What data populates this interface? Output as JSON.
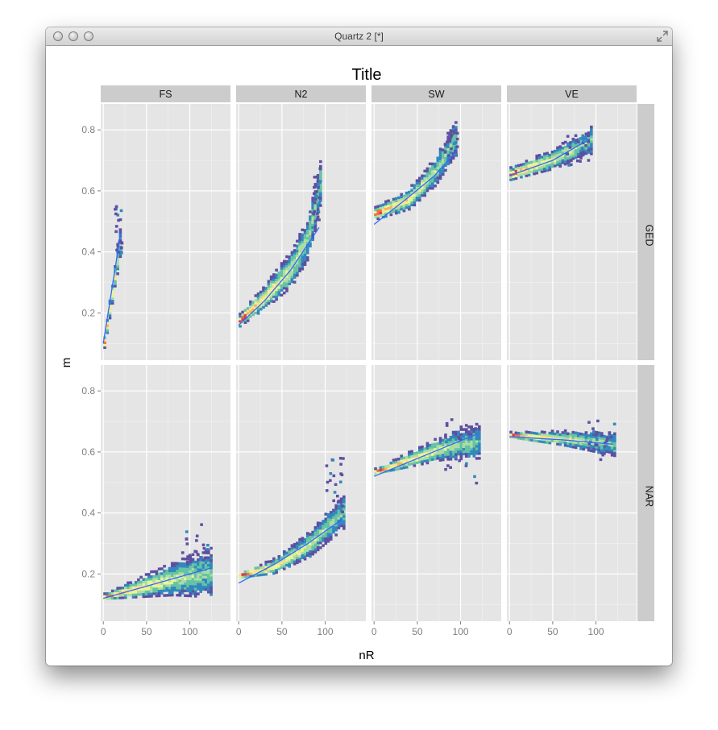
{
  "window": {
    "title": "Quartz 2 [*]",
    "controls": [
      "close-icon",
      "minimize-icon",
      "zoom-icon"
    ],
    "resize_icon": "fullscreen-arrows-icon"
  },
  "chart_data": {
    "type": "heatmap",
    "title": "Title",
    "xlabel": "nR",
    "ylabel": "m",
    "xlim": [
      -3,
      147
    ],
    "ylim": [
      0.045,
      0.885
    ],
    "x_ticks": [
      0,
      50,
      100
    ],
    "y_ticks": [
      0.2,
      0.4,
      0.6,
      0.8
    ],
    "grid": true,
    "facet_cols": [
      "FS",
      "N2",
      "SW",
      "VE"
    ],
    "facet_rows": [
      "GED",
      "NAR"
    ],
    "colors": {
      "panel_bg": "#e5e5e5",
      "strip_bg": "#cccccc",
      "grid": "#ffffff",
      "smooth_line": "#3366ff",
      "palette": [
        "#5e4fa2",
        "#3288bd",
        "#66c2a5",
        "#abdda4",
        "#e6f598",
        "#fee08b",
        "#fdae61",
        "#f46d43",
        "#d53e4f"
      ]
    },
    "panels": [
      {
        "col": "FS",
        "row": "GED",
        "x": [
          0,
          20
        ],
        "trend": [
          [
            0,
            0.1
          ],
          [
            20,
            0.46
          ]
        ],
        "spread": [
          0.02,
          0.05
        ],
        "extreme": [
          12,
          20,
          0.39,
          0.55
        ]
      },
      {
        "col": "N2",
        "row": "GED",
        "x": [
          0,
          93
        ],
        "trend": [
          [
            0,
            0.17
          ],
          [
            30,
            0.25
          ],
          [
            60,
            0.34
          ],
          [
            80,
            0.45
          ],
          [
            93,
            0.62
          ]
        ],
        "spread": [
          0.02,
          0.07
        ],
        "extreme": [
          85,
          93,
          0.5,
          0.67
        ]
      },
      {
        "col": "SW",
        "row": "GED",
        "x": [
          0,
          95
        ],
        "trend": [
          [
            0,
            0.52
          ],
          [
            40,
            0.57
          ],
          [
            70,
            0.66
          ],
          [
            95,
            0.78
          ]
        ],
        "spread": [
          0.02,
          0.05
        ],
        "extreme": [
          80,
          95,
          0.7,
          0.8
        ]
      },
      {
        "col": "VE",
        "row": "GED",
        "x": [
          0,
          93
        ],
        "trend": [
          [
            0,
            0.65
          ],
          [
            50,
            0.7
          ],
          [
            93,
            0.76
          ]
        ],
        "spread": [
          0.02,
          0.04
        ],
        "extreme": [
          60,
          93,
          0.66,
          0.78
        ]
      },
      {
        "col": "FS",
        "row": "NAR",
        "x": [
          0,
          125
        ],
        "trend": [
          [
            0,
            0.12
          ],
          [
            40,
            0.15
          ],
          [
            80,
            0.18
          ],
          [
            125,
            0.2
          ]
        ],
        "spread": [
          0.01,
          0.07
        ],
        "extreme": [
          90,
          120,
          0.23,
          0.36
        ]
      },
      {
        "col": "N2",
        "row": "NAR",
        "x": [
          0,
          120
        ],
        "trend": [
          [
            0,
            0.19
          ],
          [
            40,
            0.22
          ],
          [
            80,
            0.29
          ],
          [
            120,
            0.4
          ]
        ],
        "spread": [
          0.01,
          0.05
        ],
        "extreme": [
          100,
          120,
          0.4,
          0.58
        ]
      },
      {
        "col": "SW",
        "row": "NAR",
        "x": [
          0,
          120
        ],
        "trend": [
          [
            0,
            0.53
          ],
          [
            40,
            0.57
          ],
          [
            80,
            0.61
          ],
          [
            120,
            0.63
          ]
        ],
        "spread": [
          0.01,
          0.05
        ],
        "extreme": [
          80,
          120,
          0.47,
          0.71
        ]
      },
      {
        "col": "VE",
        "row": "NAR",
        "x": [
          0,
          120
        ],
        "trend": [
          [
            0,
            0.65
          ],
          [
            60,
            0.64
          ],
          [
            120,
            0.62
          ]
        ],
        "spread": [
          0.01,
          0.035
        ],
        "extreme": [
          90,
          120,
          0.57,
          0.7
        ]
      }
    ],
    "smooth_lines": [
      {
        "col": "FS",
        "row": "GED",
        "points": [
          [
            0,
            0.1
          ],
          [
            20,
            0.46
          ]
        ]
      },
      {
        "col": "N2",
        "row": "GED",
        "points": [
          [
            0,
            0.16
          ],
          [
            30,
            0.24
          ],
          [
            60,
            0.34
          ],
          [
            93,
            0.48
          ]
        ]
      },
      {
        "col": "SW",
        "row": "GED",
        "points": [
          [
            0,
            0.49
          ],
          [
            40,
            0.58
          ],
          [
            70,
            0.65
          ],
          [
            95,
            0.73
          ]
        ]
      },
      {
        "col": "VE",
        "row": "GED",
        "points": [
          [
            0,
            0.65
          ],
          [
            50,
            0.7
          ],
          [
            93,
            0.77
          ]
        ]
      },
      {
        "col": "FS",
        "row": "NAR",
        "points": [
          [
            0,
            0.12
          ],
          [
            50,
            0.16
          ],
          [
            125,
            0.22
          ]
        ]
      },
      {
        "col": "N2",
        "row": "NAR",
        "points": [
          [
            0,
            0.17
          ],
          [
            40,
            0.23
          ],
          [
            80,
            0.3
          ],
          [
            120,
            0.38
          ]
        ]
      },
      {
        "col": "SW",
        "row": "NAR",
        "points": [
          [
            0,
            0.52
          ],
          [
            60,
            0.59
          ],
          [
            120,
            0.66
          ]
        ]
      },
      {
        "col": "VE",
        "row": "NAR",
        "points": [
          [
            0,
            0.65
          ],
          [
            60,
            0.64
          ],
          [
            120,
            0.625
          ]
        ]
      }
    ]
  }
}
